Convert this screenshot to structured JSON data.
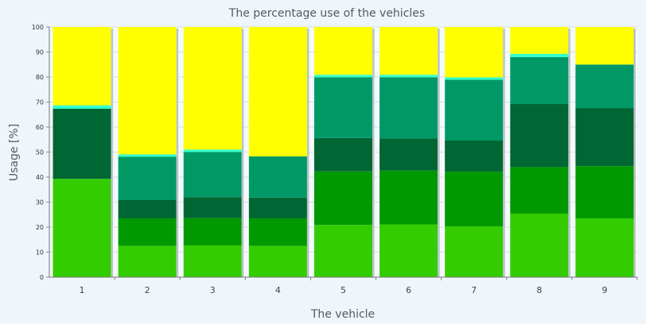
{
  "chart_data": {
    "type": "bar",
    "stacked": true,
    "title": "The percentage use of the vehicles",
    "xlabel": "The vehicle",
    "ylabel": "Usage [%]",
    "ylim": [
      0,
      100
    ],
    "yticks": [
      0,
      10,
      20,
      30,
      40,
      50,
      60,
      70,
      80,
      90,
      100
    ],
    "grid": "horizontal",
    "legend": "none",
    "categories": [
      "1",
      "2",
      "3",
      "4",
      "5",
      "6",
      "7",
      "8",
      "9"
    ],
    "series": [
      {
        "color": "#33cc00",
        "values": [
          39.3,
          12.5,
          12.7,
          12.5,
          20.9,
          21.1,
          20.3,
          25.4,
          23.5
        ]
      },
      {
        "color": "#009900",
        "values": [
          0,
          11.0,
          10.9,
          11.0,
          21.4,
          21.5,
          21.9,
          18.6,
          20.9
        ]
      },
      {
        "color": "#006633",
        "values": [
          28.0,
          7.3,
          8.4,
          8.3,
          13.3,
          12.9,
          12.4,
          25.2,
          23.2
        ]
      },
      {
        "color": "#009966",
        "values": [
          0,
          17.3,
          18.0,
          16.5,
          24.3,
          24.4,
          24.3,
          18.8,
          17.4
        ]
      },
      {
        "color": "#33ffcc",
        "values": [
          1.4,
          1.0,
          1.0,
          0,
          1.0,
          1.0,
          1.0,
          1.3,
          0
        ]
      },
      {
        "color": "#ffff00",
        "values": [
          31.3,
          50.9,
          49.0,
          51.7,
          19.1,
          19.1,
          20.1,
          10.7,
          15.0
        ]
      }
    ]
  }
}
